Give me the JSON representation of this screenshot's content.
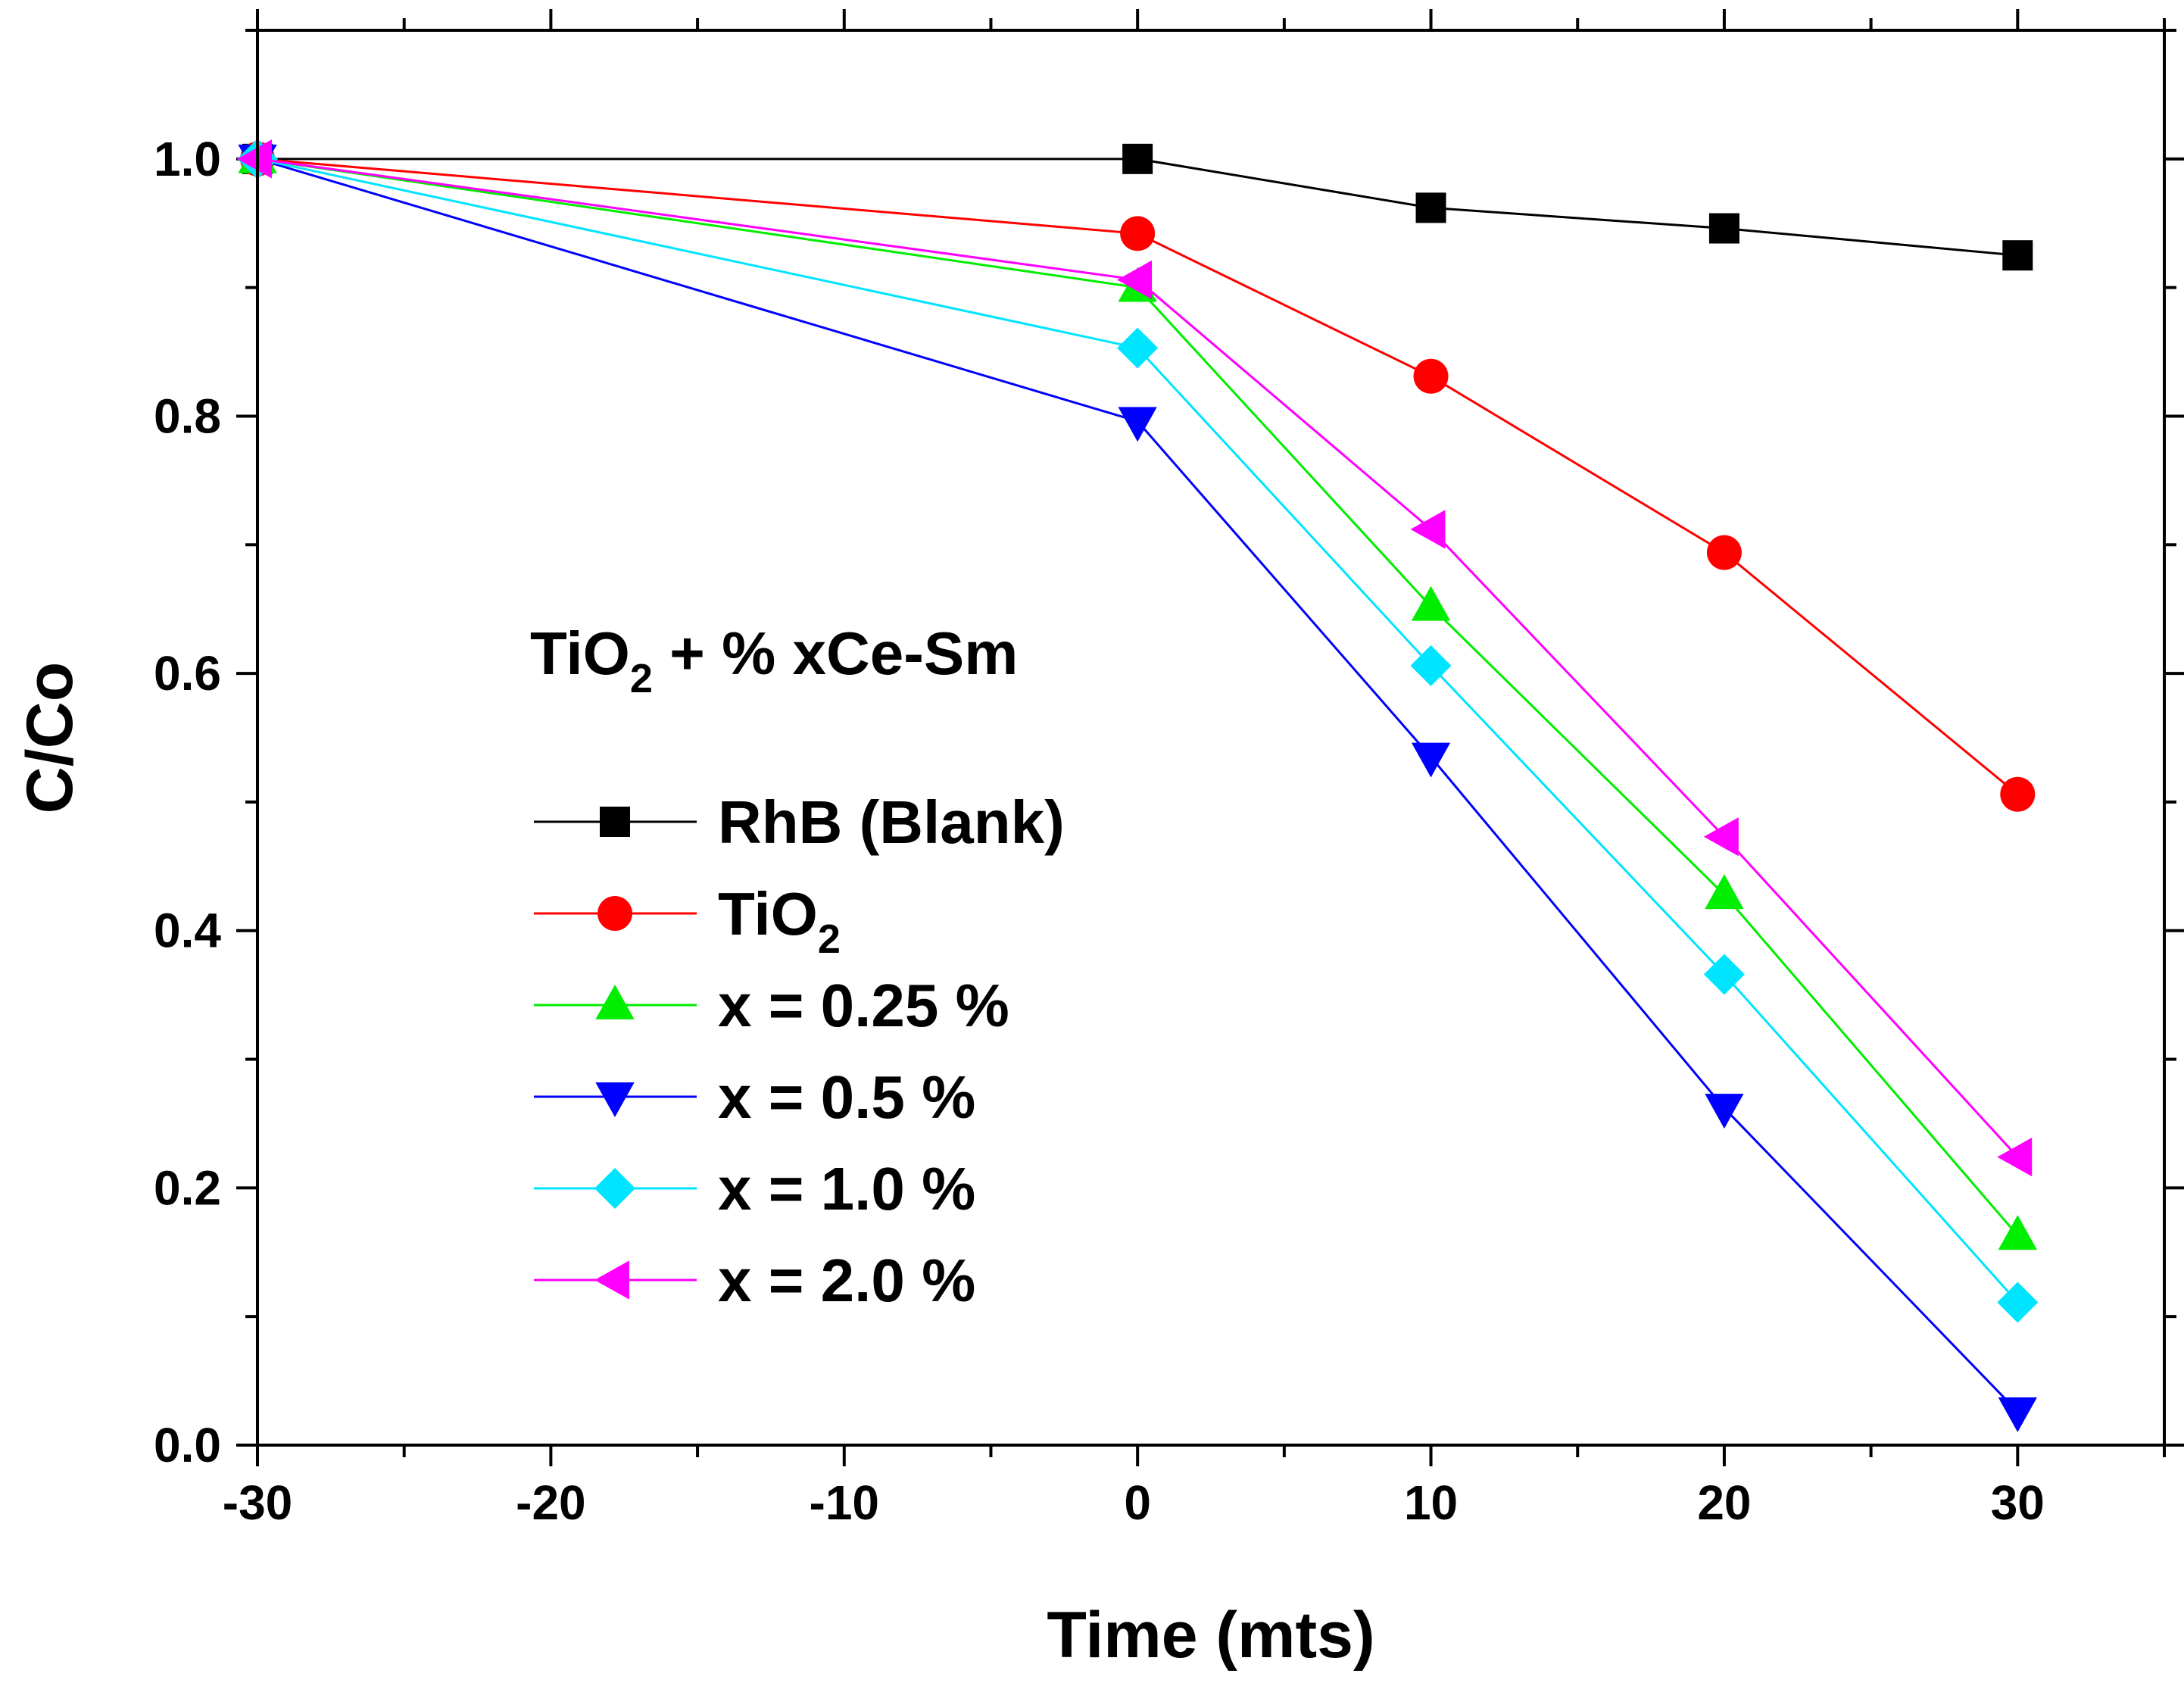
{
  "chart_data": {
    "type": "line",
    "title": "",
    "xlabel": "Time (mts)",
    "ylabel": "C/Co",
    "xlim": [
      -30,
      35
    ],
    "ylim": [
      0.0,
      1.1
    ],
    "xticks": [
      -30,
      -20,
      -10,
      0,
      10,
      20,
      30
    ],
    "xtick_labels": [
      "-30",
      "-20",
      "-10",
      "0",
      "10",
      "20",
      "30"
    ],
    "yticks": [
      0.0,
      0.2,
      0.4,
      0.6,
      0.8,
      1.0
    ],
    "ytick_labels": [
      "0.0",
      "0.2",
      "0.4",
      "0.6",
      "0.8",
      "1.0"
    ],
    "grid": false,
    "annotation": {
      "prefix": "TiO",
      "sub": "2",
      "suffix": " + % xCe-Sm"
    },
    "legend_position": "center-left",
    "series": [
      {
        "name": "RhB (Blank)",
        "name_sub": "",
        "color": "#000000",
        "marker": "square",
        "x": [
          -30,
          0,
          10,
          20,
          30
        ],
        "y": [
          1.0,
          1.0,
          0.962,
          0.946,
          0.925
        ]
      },
      {
        "name": "TiO",
        "name_sub": "2",
        "color": "#ff0000",
        "marker": "circle",
        "x": [
          -30,
          0,
          10,
          20,
          30
        ],
        "y": [
          1.0,
          0.942,
          0.831,
          0.694,
          0.506
        ]
      },
      {
        "name": "x = 0.25 %",
        "name_sub": "",
        "color": "#00ee00",
        "marker": "triangle-up",
        "x": [
          -30,
          0,
          10,
          20,
          30
        ],
        "y": [
          1.0,
          0.9,
          0.652,
          0.428,
          0.163
        ]
      },
      {
        "name": "x = 0.5 %",
        "name_sub": "",
        "color": "#0000ff",
        "marker": "triangle-down",
        "x": [
          -30,
          0,
          10,
          20,
          30
        ],
        "y": [
          1.0,
          0.796,
          0.535,
          0.262,
          0.026
        ]
      },
      {
        "name": "x = 1.0 %",
        "name_sub": "",
        "color": "#00e5ff",
        "marker": "diamond",
        "x": [
          -30,
          0,
          10,
          20,
          30
        ],
        "y": [
          1.0,
          0.853,
          0.606,
          0.366,
          0.111
        ]
      },
      {
        "name": "x = 2.0 %",
        "name_sub": "",
        "color": "#ff00ff",
        "marker": "triangle-left",
        "x": [
          -30,
          0,
          10,
          20,
          30
        ],
        "y": [
          1.0,
          0.906,
          0.712,
          0.473,
          0.224
        ]
      }
    ]
  }
}
